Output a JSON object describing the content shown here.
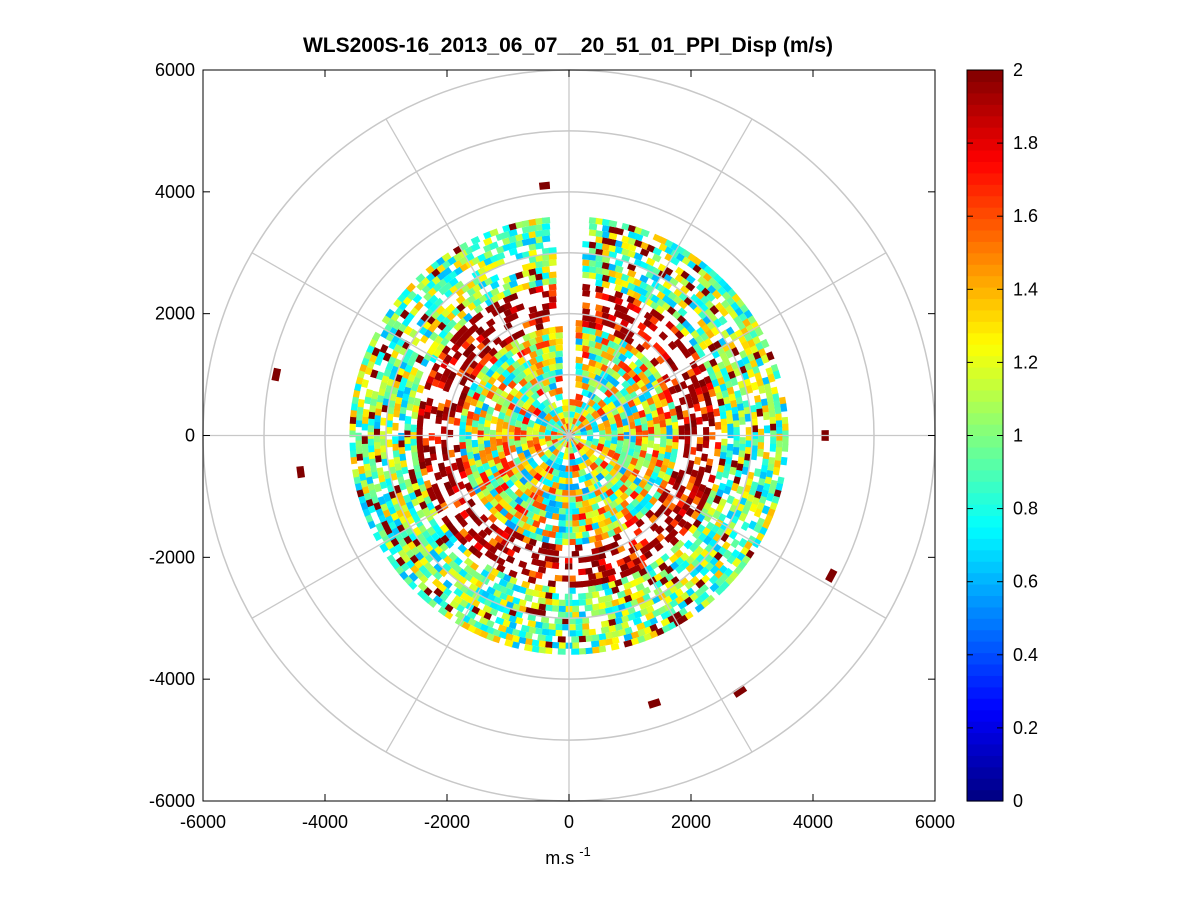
{
  "chart_data": {
    "type": "heatmap",
    "subtype": "polar-ppi",
    "title": "WLS200S-16_2013_06_07__20_51_01_PPI_Disp (m/s)",
    "xlabel_base": "m.s",
    "xlabel_exponent": "-1",
    "ylabel": "",
    "xlim": [
      -6000,
      6000
    ],
    "ylim": [
      -6000,
      6000
    ],
    "xticks": [
      -6000,
      -4000,
      -2000,
      0,
      2000,
      4000,
      6000
    ],
    "yticks": [
      -6000,
      -4000,
      -2000,
      0,
      2000,
      4000,
      6000
    ],
    "xtick_labels": [
      "-6000",
      "-4000",
      "-2000",
      "0",
      "2000",
      "4000",
      "6000"
    ],
    "ytick_labels": [
      "-6000",
      "-4000",
      "-2000",
      "0",
      "2000",
      "4000",
      "6000"
    ],
    "polar_grid": {
      "rings": [
        1000,
        2000,
        3000,
        4000,
        5000,
        6000
      ],
      "spoke_angles_deg": [
        0,
        30,
        60,
        90,
        120,
        150,
        180,
        210,
        240,
        270,
        300,
        330
      ]
    },
    "colorbar": {
      "colormap": "jet",
      "range": [
        0,
        2
      ],
      "ticks": [
        0,
        0.2,
        0.4,
        0.6,
        0.8,
        1,
        1.2,
        1.4,
        1.6,
        1.8,
        2
      ],
      "tick_labels": [
        "0",
        "0.2",
        "0.4",
        "0.6",
        "0.8",
        "1",
        "1.2",
        "1.4",
        "1.6",
        "1.8",
        "2"
      ]
    },
    "data_extent": {
      "gap_azimuth_deg": [
        355,
        5
      ],
      "zones": [
        {
          "name": "core",
          "r": [
            0,
            1800
          ],
          "mean_value": 1.15,
          "spread": 0.6,
          "coverage": 0.92
        },
        {
          "name": "inner-red-ring",
          "r": [
            1800,
            2500
          ],
          "mean_value": 1.8,
          "spread": 0.35,
          "coverage": 0.55
        },
        {
          "name": "outer-green-ring",
          "r": [
            2500,
            3600
          ],
          "mean_value": 1.0,
          "spread": 0.4,
          "coverage": 0.78
        }
      ],
      "outliers": [
        {
          "x": -4800,
          "y": 1000,
          "value": 2.0
        },
        {
          "x": -4400,
          "y": -600,
          "value": 2.0
        },
        {
          "x": 4200,
          "y": 0,
          "value": 2.0
        },
        {
          "x": 4300,
          "y": -2300,
          "value": 2.0
        },
        {
          "x": 1400,
          "y": -4400,
          "value": 2.0
        },
        {
          "x": 2800,
          "y": -4200,
          "value": 2.0
        },
        {
          "x": -400,
          "y": 4100,
          "value": 2.0
        }
      ]
    }
  }
}
